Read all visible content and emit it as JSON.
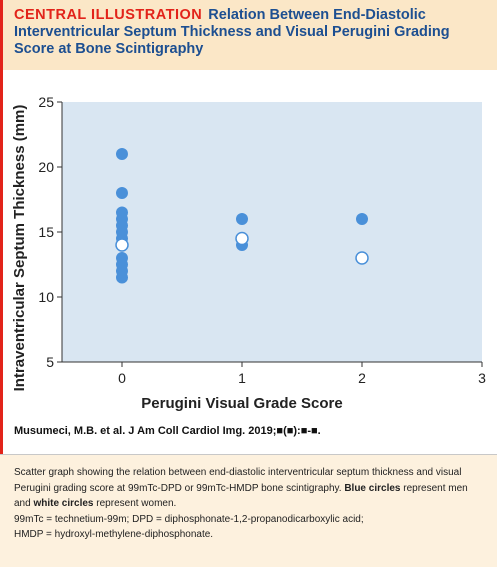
{
  "header": {
    "tag": "CENTRAL ILLUSTRATION",
    "title": "Relation Between End-Diastolic Interventricular Septum Thickness and Visual Perugini Grading Score at Bone Scintigraphy"
  },
  "citation": "Musumeci, M.B. et al. J Am Coll Cardiol Img. 2019;■(■):■-■.",
  "caption": {
    "intro": "Scatter graph showing the relation between end-diastolic interventricular septum thickness and visual Perugini grading score at 99mTc-DPD or 99mTc-HMDP bone scintigraphy.",
    "blue_label": "Blue circles",
    "blue_text": "represent men and",
    "white_label": "white circles",
    "white_text": "represent women.",
    "abbrev_1": "99mTc = technetium-99m; DPD = diphosphonate-1,2-propanodicarboxylic acid;",
    "abbrev_2": "HMDP = hydroxyl-methylene-diphosphonate."
  },
  "colors": {
    "accent_red": "#e2231a",
    "title_blue": "#1d4f91",
    "plot_bg": "#d9e6f2",
    "men_fill": "#4a90d9",
    "women_fill": "#ffffff",
    "header_bg": "#fbe7c7",
    "caption_bg": "#fdf1de"
  },
  "chart_data": {
    "type": "scatter",
    "title": "",
    "xlabel": "Perugini Visual Grade Score",
    "ylabel": "Intraventricular Septum Thickness (mm)",
    "xlim": [
      -0.5,
      3
    ],
    "ylim": [
      5,
      25
    ],
    "xticks": [
      "0",
      "1",
      "2",
      "3"
    ],
    "yticks": [
      "5",
      "10",
      "15",
      "20",
      "25"
    ],
    "grid": false,
    "series": [
      {
        "group": "men",
        "fill": "blue",
        "points": [
          [
            0,
            21
          ],
          [
            0,
            18
          ],
          [
            0,
            16.5
          ],
          [
            0,
            16
          ],
          [
            0,
            15.5
          ],
          [
            0,
            15
          ],
          [
            0,
            14.5
          ],
          [
            0,
            13
          ],
          [
            0,
            12.5
          ],
          [
            0,
            12
          ],
          [
            0,
            11.5
          ],
          [
            1,
            16
          ],
          [
            1,
            14
          ],
          [
            2,
            16
          ]
        ]
      },
      {
        "group": "women",
        "fill": "white",
        "points": [
          [
            0,
            14
          ],
          [
            1,
            14.5
          ],
          [
            2,
            13
          ]
        ]
      }
    ]
  }
}
